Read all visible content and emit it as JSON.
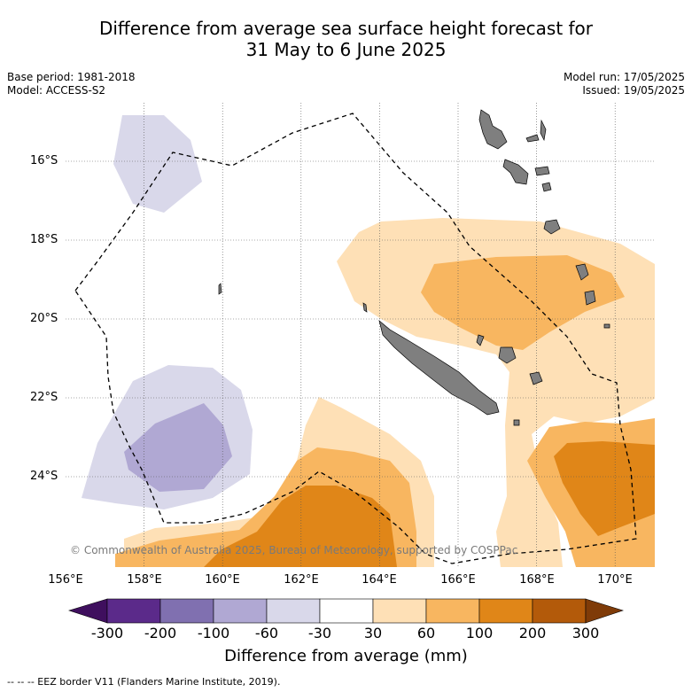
{
  "title": {
    "line1": "Difference from average sea surface height forecast for",
    "line2": "31 May to 6 June 2025"
  },
  "meta": {
    "base_period": "Base period: 1981-2018",
    "model": "Model: ACCESS-S2",
    "model_run": "Model run: 17/05/2025",
    "issued": "Issued: 19/05/2025"
  },
  "map": {
    "lat_labels": [
      "16°S",
      "18°S",
      "20°S",
      "22°S",
      "24°S"
    ],
    "lon_labels": [
      "156°E",
      "158°E",
      "160°E",
      "162°E",
      "164°E",
      "166°E",
      "168°E",
      "170°E"
    ],
    "copyright": "© Commonwealth of Australia 2025, Bureau of Meteorology, supported by COSPPac",
    "land_color": "#7f7f7f",
    "eez_style": "dashed black line"
  },
  "colorbar": {
    "ticks": [
      "-300",
      "-200",
      "-100",
      "-60",
      "-30",
      "30",
      "60",
      "100",
      "200",
      "300"
    ],
    "colors": [
      "#3f0f5e",
      "#5b2a8a",
      "#8070b0",
      "#b0a8d3",
      "#d9d8ea",
      "#ffffff",
      "#fee0b6",
      "#f8b660",
      "#e08618",
      "#b35a0a",
      "#7f3b08"
    ],
    "label": "Difference from average (mm)"
  },
  "footer": {
    "eez_legend": "--  --  -- EEZ border V11 (Flanders Marine Institute, 2019)."
  }
}
